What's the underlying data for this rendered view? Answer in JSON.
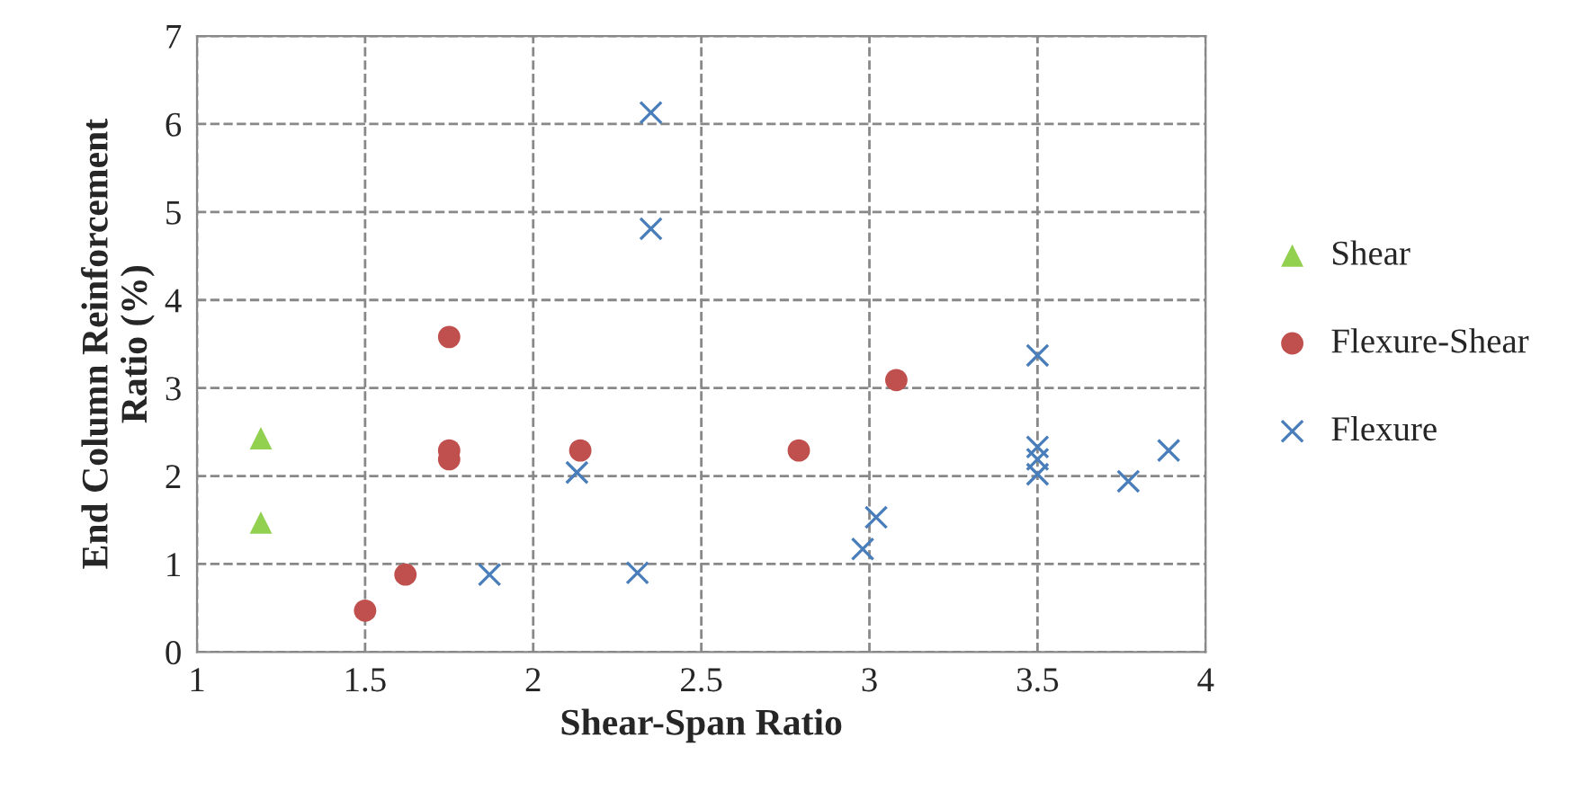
{
  "chart_data": {
    "type": "scatter",
    "xlabel": "Shear-Span Ratio",
    "ylabel": "End Column Reinforcement\nRatio (%)",
    "xlim": [
      1,
      4
    ],
    "xticks": [
      1,
      1.5,
      2,
      2.5,
      3,
      3.5,
      4
    ],
    "ylim": [
      0,
      7
    ],
    "yticks": [
      0,
      1,
      2,
      3,
      4,
      5,
      6,
      7
    ],
    "grid": true,
    "legend": "right",
    "series": [
      {
        "name": "Shear",
        "color": "#92d050",
        "marker": "triangle",
        "x": [
          1.19,
          1.19
        ],
        "values": [
          2.43,
          1.47
        ]
      },
      {
        "name": "Flexure-Shear",
        "color": "#c0504d",
        "marker": "circle",
        "x": [
          1.5,
          1.62,
          1.75,
          1.75,
          1.75,
          2.14,
          2.79,
          3.08
        ],
        "values": [
          0.47,
          0.88,
          3.58,
          2.29,
          2.19,
          2.29,
          2.29,
          3.09
        ]
      },
      {
        "name": "Flexure",
        "color": "#4a7ebb",
        "marker": "cross",
        "x": [
          2.35,
          2.35,
          1.87,
          2.13,
          2.31,
          2.98,
          3.02,
          3.5,
          3.5,
          3.5,
          3.5,
          3.77,
          3.89
        ],
        "values": [
          6.13,
          4.81,
          0.88,
          2.04,
          0.9,
          1.17,
          1.53,
          3.37,
          2.33,
          2.19,
          2.02,
          1.94,
          2.29
        ]
      }
    ]
  }
}
